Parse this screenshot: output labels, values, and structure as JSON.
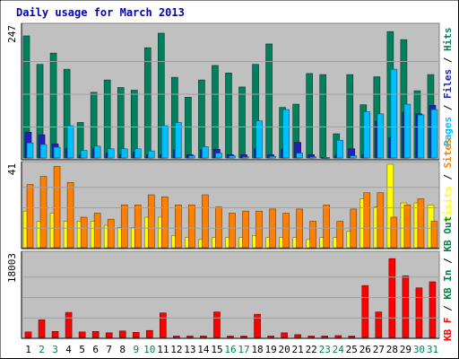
{
  "title": "Daily usage for March 2013",
  "chart_data": [
    {
      "type": "bar",
      "panel": "top",
      "ymax_label": "247",
      "ylim": [
        0,
        247
      ],
      "categories": [
        "1",
        "2",
        "3",
        "4",
        "5",
        "6",
        "7",
        "8",
        "9",
        "10",
        "11",
        "12",
        "13",
        "14",
        "15",
        "16",
        "17",
        "18",
        "19",
        "20",
        "21",
        "22",
        "23",
        "24",
        "25",
        "26",
        "27",
        "28",
        "29",
        "30",
        "31"
      ],
      "weekend_days": [
        "2",
        "3",
        "9",
        "10",
        "16",
        "17",
        "23",
        "24",
        "30",
        "31"
      ],
      "series": [
        {
          "name": "Hits",
          "color": "#00805c",
          "values": [
            227,
            174,
            195,
            165,
            66,
            122,
            145,
            131,
            126,
            205,
            232,
            150,
            113,
            145,
            172,
            158,
            132,
            174,
            212,
            94,
            100,
            157,
            155,
            45,
            155,
            99,
            151,
            235,
            220,
            125,
            155
          ]
        },
        {
          "name": "Files",
          "color": "#2020c0",
          "values": [
            48,
            43,
            26,
            18,
            5,
            17,
            9,
            6,
            11,
            6,
            6,
            15,
            6,
            15,
            16,
            6,
            6,
            17,
            6,
            16,
            29,
            6,
            1,
            5,
            17,
            6,
            68,
            38,
            85,
            82,
            98
          ]
        },
        {
          "name": "Pages",
          "color": "#00bfff",
          "values": [
            28,
            25,
            20,
            60,
            14,
            22,
            17,
            17,
            17,
            13,
            60,
            66,
            4,
            21,
            9,
            4,
            2,
            69,
            3,
            90,
            9,
            2,
            1,
            33,
            4,
            86,
            82,
            165,
            100,
            80,
            90
          ]
        }
      ],
      "legend": [
        "Pages",
        "Files",
        "Hits"
      ]
    },
    {
      "type": "bar",
      "panel": "middle",
      "ymax_label": "41",
      "ylim": [
        0,
        41
      ],
      "categories": [
        "1",
        "2",
        "3",
        "4",
        "5",
        "6",
        "7",
        "8",
        "9",
        "10",
        "11",
        "12",
        "13",
        "14",
        "15",
        "16",
        "17",
        "18",
        "19",
        "20",
        "21",
        "22",
        "23",
        "24",
        "25",
        "26",
        "27",
        "28",
        "29",
        "30",
        "31"
      ],
      "series": [
        {
          "name": "Visits",
          "color": "#ffff00",
          "values": [
            18,
            13,
            17,
            13,
            13,
            13,
            11,
            10,
            10,
            15,
            15,
            6,
            5,
            4,
            5,
            5,
            5,
            6,
            5,
            5,
            5,
            4,
            5,
            5,
            8,
            24,
            20,
            41,
            22,
            22,
            21
          ]
        },
        {
          "name": "Sites",
          "color": "#ff8000",
          "values": [
            31,
            35,
            40,
            32,
            15,
            17,
            14,
            21,
            21,
            26,
            25,
            21,
            21,
            26,
            20,
            17,
            18,
            18,
            19,
            17,
            19,
            13,
            21,
            13,
            19,
            27,
            27,
            15,
            21,
            24,
            13
          ]
        }
      ],
      "legend": [
        "Visits",
        "Sites"
      ]
    },
    {
      "type": "bar",
      "panel": "bottom",
      "ymax_label": "18003",
      "ylim": [
        0,
        18003
      ],
      "categories": [
        "1",
        "2",
        "3",
        "4",
        "5",
        "6",
        "7",
        "8",
        "9",
        "10",
        "11",
        "12",
        "13",
        "14",
        "15",
        "16",
        "17",
        "18",
        "19",
        "20",
        "21",
        "22",
        "23",
        "24",
        "25",
        "26",
        "27",
        "28",
        "29",
        "30",
        "31"
      ],
      "series": [
        {
          "name": "KB In",
          "color": "#008040",
          "values": [
            0,
            0,
            0,
            0,
            0,
            0,
            0,
            0,
            0,
            0,
            0,
            0,
            0,
            0,
            0,
            0,
            0,
            0,
            0,
            0,
            0,
            0,
            0,
            0,
            0,
            0,
            0,
            0,
            0,
            0,
            0
          ]
        },
        {
          "name": "KB Out",
          "color": "#008040",
          "values": [
            0,
            0,
            0,
            0,
            0,
            0,
            0,
            0,
            0,
            0,
            0,
            0,
            0,
            0,
            0,
            0,
            0,
            0,
            0,
            0,
            0,
            0,
            0,
            0,
            0,
            0,
            0,
            0,
            0,
            0,
            0
          ]
        },
        {
          "name": "KB F",
          "color": "#ff0000",
          "values": [
            1200,
            3800,
            1300,
            5400,
            1200,
            1300,
            1000,
            1400,
            1100,
            1500,
            5300,
            300,
            300,
            300,
            5500,
            300,
            300,
            5000,
            300,
            1000,
            600,
            300,
            300,
            400,
            300,
            11200,
            5500,
            17000,
            13300,
            10700,
            12000
          ]
        }
      ],
      "legend": [
        "KB F",
        "KB In",
        "KB Out"
      ]
    }
  ]
}
